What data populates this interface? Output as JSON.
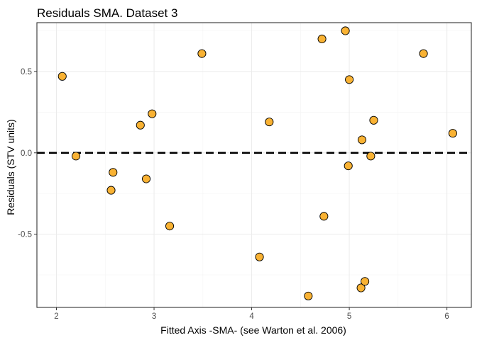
{
  "chart_data": {
    "type": "scatter",
    "title": "Residuals SMA. Dataset 3",
    "xlabel": "Fitted Axis -SMA- (see Warton et al. 2006)",
    "ylabel": "Residuals (STV units)",
    "xlim": [
      1.8,
      6.25
    ],
    "ylim": [
      -0.95,
      0.8
    ],
    "xticks": [
      2,
      3,
      4,
      5,
      6
    ],
    "xtick_labels": [
      "2",
      "3",
      "4",
      "5",
      "6"
    ],
    "yticks": [
      -0.5,
      0.0,
      0.5
    ],
    "ytick_labels": [
      "-0.5",
      "0.0",
      "0.5"
    ],
    "grid": true,
    "reference_line": {
      "y": 0,
      "style": "dashed"
    },
    "point_color": "#F9B233",
    "points": [
      {
        "x": 2.06,
        "y": 0.47
      },
      {
        "x": 2.2,
        "y": -0.02
      },
      {
        "x": 2.56,
        "y": -0.23
      },
      {
        "x": 2.58,
        "y": -0.12
      },
      {
        "x": 2.86,
        "y": 0.17
      },
      {
        "x": 2.92,
        "y": -0.16
      },
      {
        "x": 2.98,
        "y": 0.24
      },
      {
        "x": 3.16,
        "y": -0.45
      },
      {
        "x": 3.49,
        "y": 0.61
      },
      {
        "x": 4.08,
        "y": -0.64
      },
      {
        "x": 4.18,
        "y": 0.19
      },
      {
        "x": 4.58,
        "y": -0.88
      },
      {
        "x": 4.72,
        "y": 0.7
      },
      {
        "x": 4.74,
        "y": -0.39
      },
      {
        "x": 4.96,
        "y": 0.75
      },
      {
        "x": 4.99,
        "y": -0.08
      },
      {
        "x": 5.0,
        "y": 0.45
      },
      {
        "x": 5.12,
        "y": -0.83
      },
      {
        "x": 5.13,
        "y": 0.08
      },
      {
        "x": 5.16,
        "y": -0.79
      },
      {
        "x": 5.22,
        "y": -0.02
      },
      {
        "x": 5.25,
        "y": 0.2
      },
      {
        "x": 5.76,
        "y": 0.61
      },
      {
        "x": 6.06,
        "y": 0.12
      }
    ]
  }
}
